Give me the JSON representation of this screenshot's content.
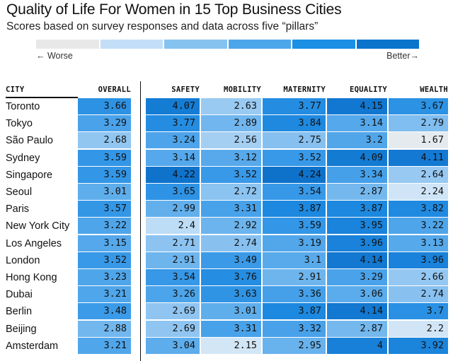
{
  "title": "Quality of Life For Women in 15 Top Business Cities",
  "subtitle": "Scores based on survey responses and data across five “pillars”",
  "scale": {
    "worse_label": "← Worse",
    "better_label": "Better→",
    "colors": [
      "#e8e8e8",
      "#c3def7",
      "#86c2f0",
      "#4ea6ea",
      "#1b8fe3",
      "#0a74cc"
    ]
  },
  "chart_data": {
    "type": "table",
    "title": "Quality of Life For Women in 15 Top Business Cities",
    "subtitle": "Scores based on survey responses and data across five “pillars”",
    "columns": [
      "CITY",
      "OVERALL",
      "SAFETY",
      "MOBILITY",
      "MATERNITY",
      "EQUALITY",
      "WEALTH"
    ],
    "cities": [
      "Toronto",
      "Tokyo",
      "São Paulo",
      "Sydney",
      "Singapore",
      "Seoul",
      "Paris",
      "New York City",
      "Los Angeles",
      "London",
      "Hong Kong",
      "Dubai",
      "Berlin",
      "Beijing",
      "Amsterdam"
    ],
    "values": [
      [
        "3.66",
        "4.07",
        "2.63",
        "3.77",
        "4.15",
        "3.67"
      ],
      [
        "3.29",
        "3.77",
        "2.89",
        "3.84",
        "3.14",
        "2.79"
      ],
      [
        "2.68",
        "3.24",
        "2.56",
        "2.75",
        "3.2",
        "1.67"
      ],
      [
        "3.59",
        "3.14",
        "3.12",
        "3.52",
        "4.09",
        "4.11"
      ],
      [
        "3.59",
        "4.22",
        "3.52",
        "4.24",
        "3.34",
        "2.64"
      ],
      [
        "3.01",
        "3.65",
        "2.72",
        "3.54",
        "2.87",
        "2.24"
      ],
      [
        "3.57",
        "2.99",
        "3.31",
        "3.87",
        "3.87",
        "3.82"
      ],
      [
        "3.22",
        "2.4",
        "2.92",
        "3.59",
        "3.95",
        "3.22"
      ],
      [
        "3.15",
        "2.71",
        "2.74",
        "3.19",
        "3.96",
        "3.13"
      ],
      [
        "3.52",
        "2.91",
        "3.49",
        "3.1",
        "4.14",
        "3.96"
      ],
      [
        "3.23",
        "3.54",
        "3.76",
        "2.91",
        "3.29",
        "2.66"
      ],
      [
        "3.21",
        "3.26",
        "3.63",
        "3.36",
        "3.06",
        "2.74"
      ],
      [
        "3.48",
        "2.69",
        "3.01",
        "3.87",
        "4.14",
        "3.7"
      ],
      [
        "2.88",
        "2.69",
        "3.31",
        "3.32",
        "2.87",
        "2.2"
      ],
      [
        "3.21",
        "3.04",
        "2.15",
        "2.95",
        "4",
        "3.92"
      ]
    ]
  }
}
